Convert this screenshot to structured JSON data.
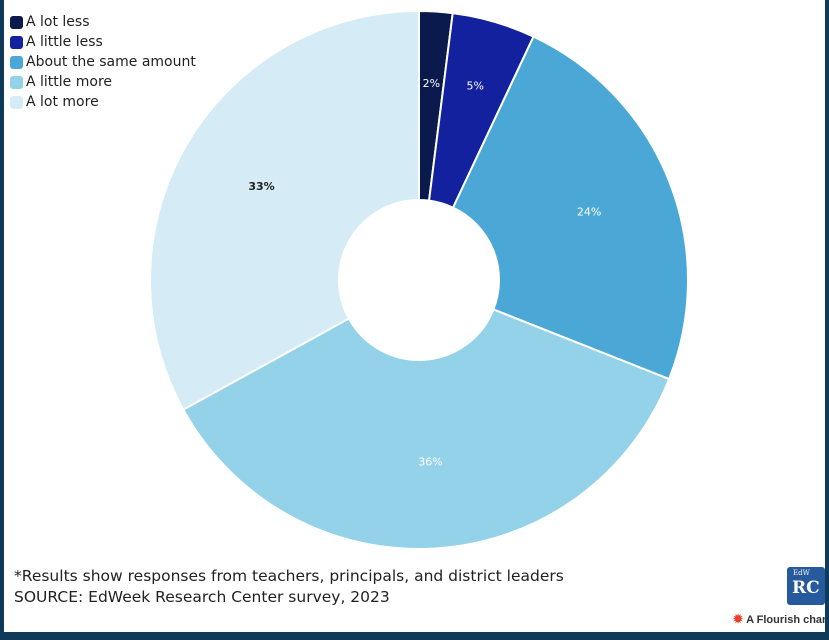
{
  "chart_data": {
    "type": "pie",
    "donut": true,
    "categories": [
      "A lot less",
      "A little less",
      "About the same amount",
      "A little more",
      "A lot more"
    ],
    "values": [
      2,
      5,
      24,
      36,
      33
    ],
    "labels": [
      "2%",
      "5%",
      "24%",
      "36%",
      "33%"
    ],
    "colors": [
      "#0a1a4d",
      "#14219e",
      "#4ba8d6",
      "#93d2e8",
      "#d5ecf6"
    ],
    "label_colors": [
      "#ffffff",
      "#ffffff",
      "#ffffff",
      "#ffffff",
      "#222222"
    ],
    "legend_position": "top-left"
  },
  "footnote": {
    "line1": "*Results show responses from teachers, principals, and district leaders",
    "line2": "SOURCE: EdWeek Research Center survey, 2023"
  },
  "logo": {
    "small": "EdW",
    "big": "RC"
  },
  "credit": {
    "text": "A Flourish char",
    "icon": "flourish-icon"
  }
}
